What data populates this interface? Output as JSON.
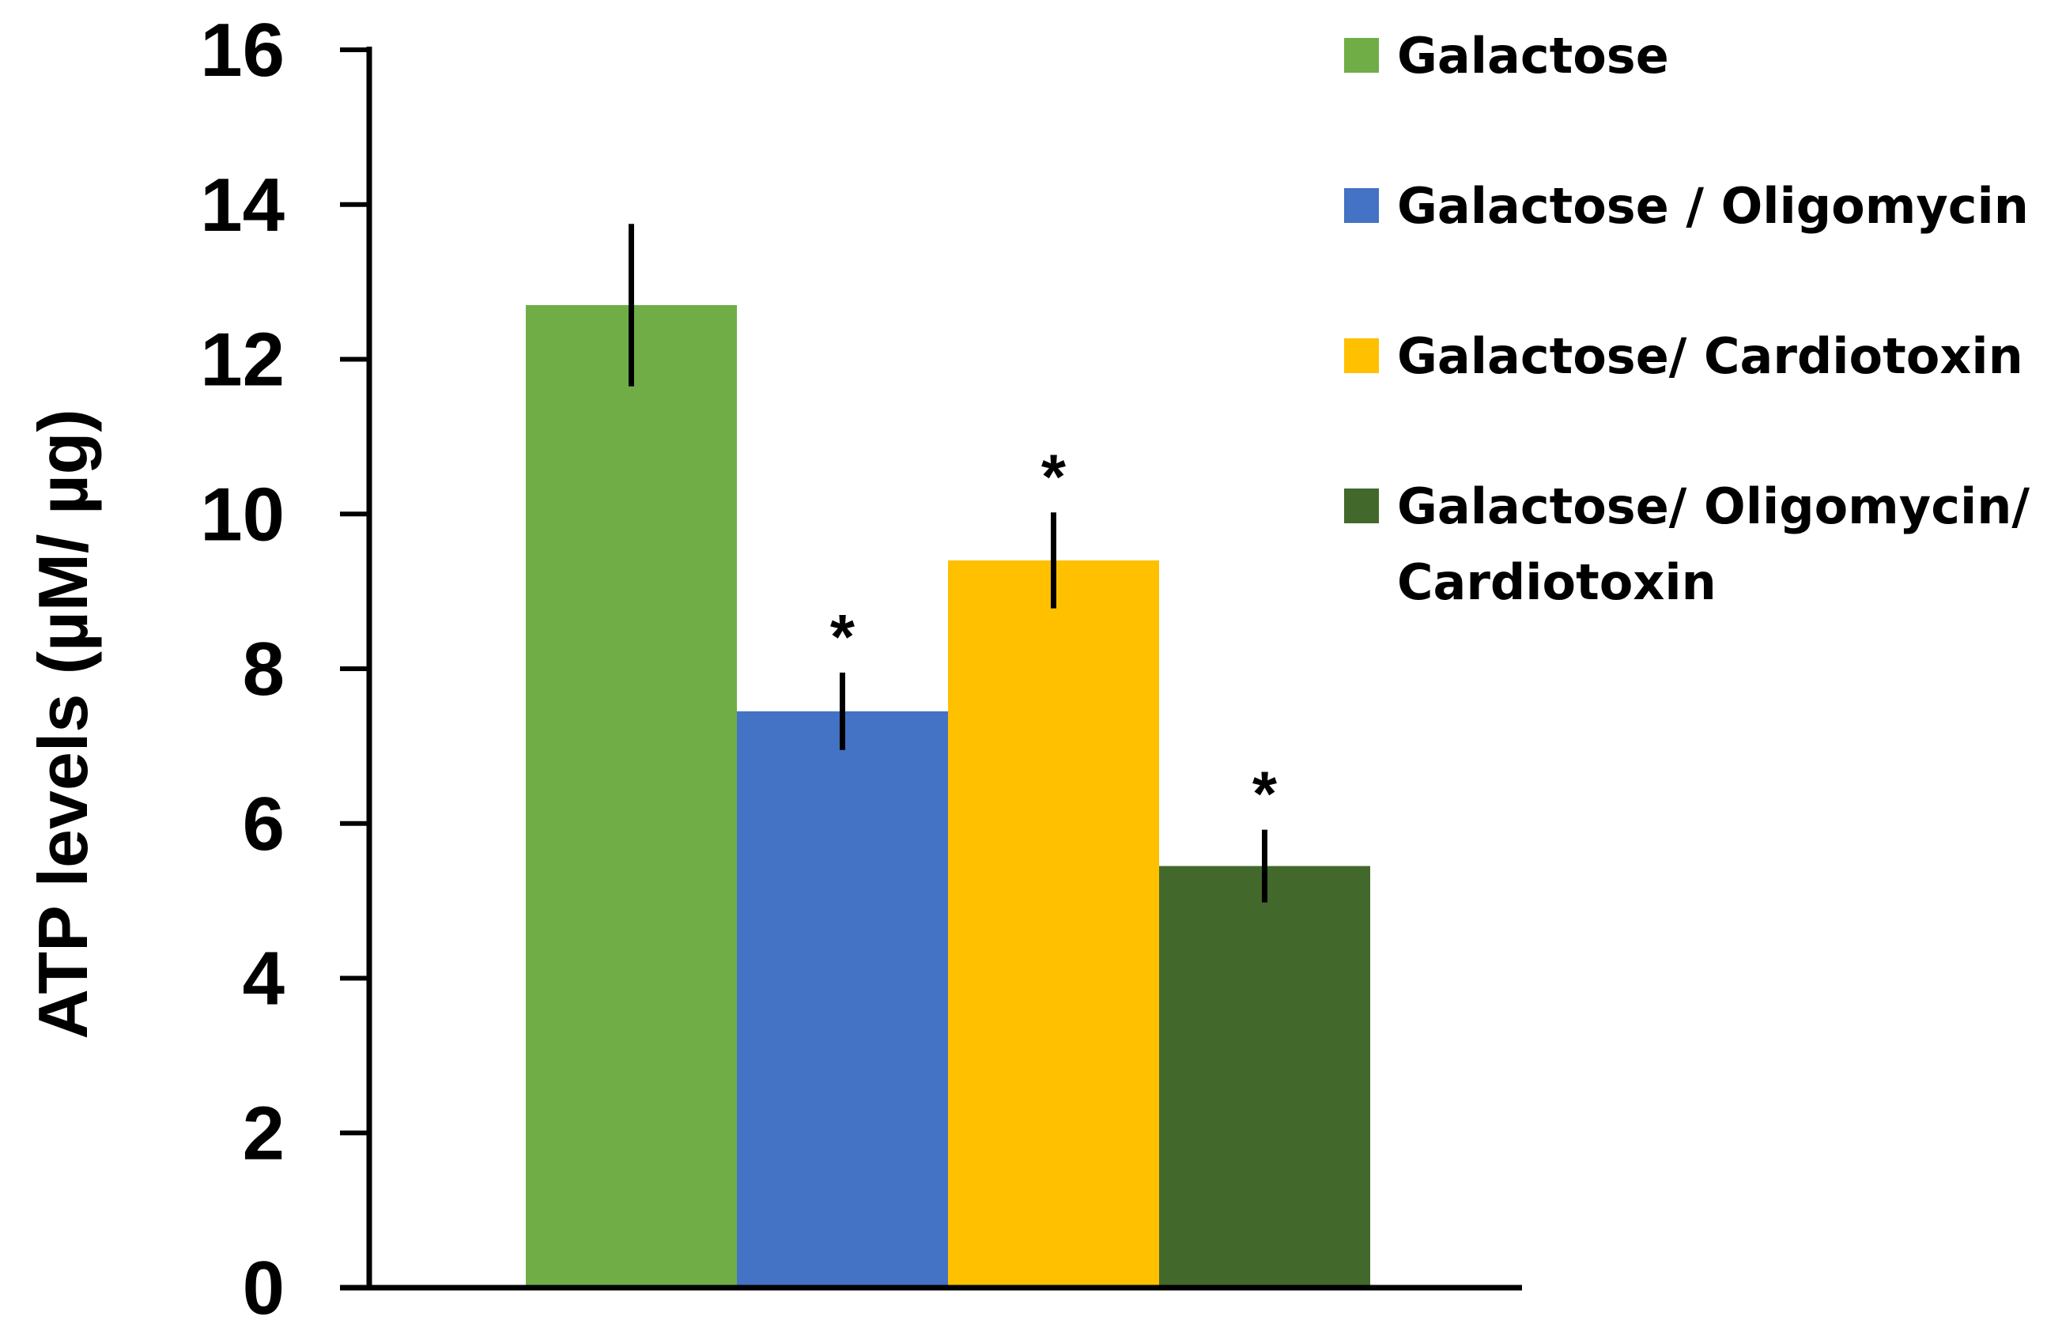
{
  "chart_data": {
    "type": "bar",
    "title": "",
    "xlabel": "",
    "ylabel": "ATP levels (µM/ µg)",
    "ylim": [
      0,
      16
    ],
    "yticks": [
      0,
      2,
      4,
      6,
      8,
      10,
      12,
      14,
      16
    ],
    "legend_position": "right",
    "series": [
      {
        "name": "Galactose",
        "value": 12.7,
        "error": 1.05,
        "color": "#70AD47",
        "significance": ""
      },
      {
        "name": "Galactose / Oligomycin",
        "value": 7.45,
        "error": 0.5,
        "color": "#4472C4",
        "significance": "*"
      },
      {
        "name": "Galactose/  Cardiotoxin",
        "value": 9.4,
        "error": 0.62,
        "color": "#FFC000",
        "significance": "*"
      },
      {
        "name": "Galactose/  Oligomycin/ Cardiotoxin",
        "legend_lines": [
          "Galactose/  Oligomycin/",
          "Cardiotoxin"
        ],
        "value": 5.45,
        "error": 0.47,
        "color": "#43682B",
        "significance": "*"
      }
    ]
  }
}
